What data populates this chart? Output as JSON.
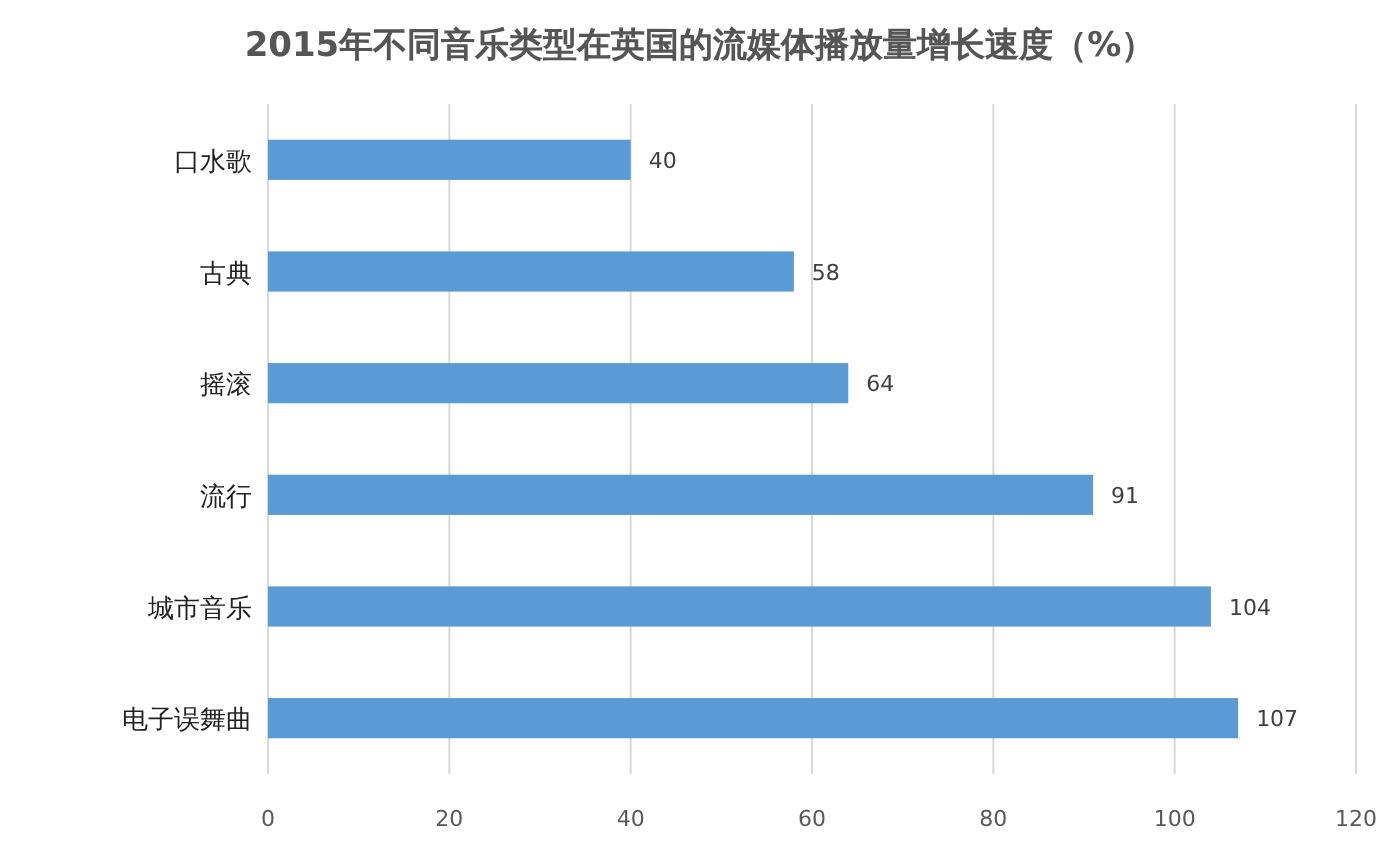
{
  "chart_data": {
    "type": "bar",
    "orientation": "horizontal",
    "title": "2015年不同音乐类型在英国的流媒体播放量增长速度（%）",
    "categories": [
      "口水歌",
      "古典",
      "摇滚",
      "流行",
      "城市音乐",
      "电子误舞曲"
    ],
    "values": [
      40,
      58,
      64,
      91,
      104,
      107
    ],
    "color": "#5b9bd5",
    "xlim": [
      0,
      120
    ],
    "xticks": [
      0,
      20,
      40,
      60,
      80,
      100,
      120
    ],
    "grid": "x",
    "data_labels": true
  }
}
